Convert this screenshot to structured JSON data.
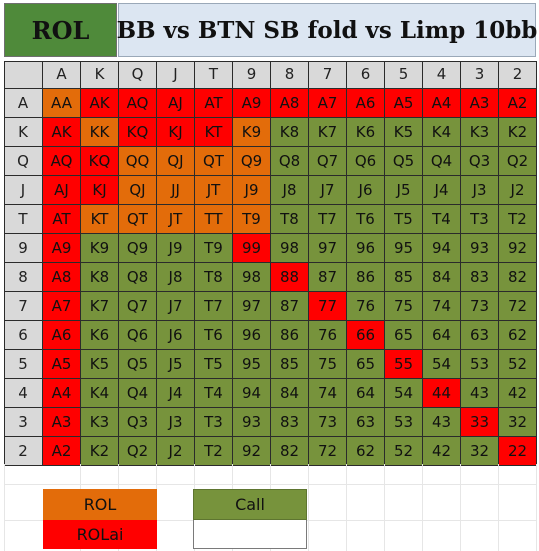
{
  "header": {
    "tag": "ROL",
    "title": "BB vs BTN SB fold vs Limp 10bb"
  },
  "colors": {
    "ROL": "#e36c0a",
    "ROLai": "#ff0000",
    "Call": "#77933c",
    "header_tag": "#4f8a3a",
    "title_bg": "#dce6f2",
    "axis_bg": "#d9d9d9"
  },
  "grid": {
    "ranks": [
      "A",
      "K",
      "Q",
      "J",
      "T",
      "9",
      "8",
      "7",
      "6",
      "5",
      "4",
      "3",
      "2"
    ],
    "rows": [
      {
        "label": "A",
        "cells": [
          [
            "AA",
            "ROL"
          ],
          [
            "AK",
            "ROLai"
          ],
          [
            "AQ",
            "ROLai"
          ],
          [
            "AJ",
            "ROLai"
          ],
          [
            "AT",
            "ROLai"
          ],
          [
            "A9",
            "ROLai"
          ],
          [
            "A8",
            "ROLai"
          ],
          [
            "A7",
            "ROLai"
          ],
          [
            "A6",
            "ROLai"
          ],
          [
            "A5",
            "ROLai"
          ],
          [
            "A4",
            "ROLai"
          ],
          [
            "A3",
            "ROLai"
          ],
          [
            "A2",
            "ROLai"
          ]
        ]
      },
      {
        "label": "K",
        "cells": [
          [
            "AK",
            "ROLai"
          ],
          [
            "KK",
            "ROL"
          ],
          [
            "KQ",
            "ROLai"
          ],
          [
            "KJ",
            "ROLai"
          ],
          [
            "KT",
            "ROLai"
          ],
          [
            "K9",
            "ROL"
          ],
          [
            "K8",
            "Call"
          ],
          [
            "K7",
            "Call"
          ],
          [
            "K6",
            "Call"
          ],
          [
            "K5",
            "Call"
          ],
          [
            "K4",
            "Call"
          ],
          [
            "K3",
            "Call"
          ],
          [
            "K2",
            "Call"
          ]
        ]
      },
      {
        "label": "Q",
        "cells": [
          [
            "AQ",
            "ROLai"
          ],
          [
            "KQ",
            "ROLai"
          ],
          [
            "QQ",
            "ROL"
          ],
          [
            "QJ",
            "ROL"
          ],
          [
            "QT",
            "ROL"
          ],
          [
            "Q9",
            "ROL"
          ],
          [
            "Q8",
            "Call"
          ],
          [
            "Q7",
            "Call"
          ],
          [
            "Q6",
            "Call"
          ],
          [
            "Q5",
            "Call"
          ],
          [
            "Q4",
            "Call"
          ],
          [
            "Q3",
            "Call"
          ],
          [
            "Q2",
            "Call"
          ]
        ]
      },
      {
        "label": "J",
        "cells": [
          [
            "AJ",
            "ROLai"
          ],
          [
            "KJ",
            "ROLai"
          ],
          [
            "QJ",
            "ROL"
          ],
          [
            "JJ",
            "ROL"
          ],
          [
            "JT",
            "ROL"
          ],
          [
            "J9",
            "ROL"
          ],
          [
            "J8",
            "Call"
          ],
          [
            "J7",
            "Call"
          ],
          [
            "J6",
            "Call"
          ],
          [
            "J5",
            "Call"
          ],
          [
            "J4",
            "Call"
          ],
          [
            "J3",
            "Call"
          ],
          [
            "J2",
            "Call"
          ]
        ]
      },
      {
        "label": "T",
        "cells": [
          [
            "AT",
            "ROLai"
          ],
          [
            "KT",
            "ROL"
          ],
          [
            "QT",
            "ROL"
          ],
          [
            "JT",
            "ROL"
          ],
          [
            "TT",
            "ROL"
          ],
          [
            "T9",
            "ROL"
          ],
          [
            "T8",
            "Call"
          ],
          [
            "T7",
            "Call"
          ],
          [
            "T6",
            "Call"
          ],
          [
            "T5",
            "Call"
          ],
          [
            "T4",
            "Call"
          ],
          [
            "T3",
            "Call"
          ],
          [
            "T2",
            "Call"
          ]
        ]
      },
      {
        "label": "9",
        "cells": [
          [
            "A9",
            "ROLai"
          ],
          [
            "K9",
            "Call"
          ],
          [
            "Q9",
            "Call"
          ],
          [
            "J9",
            "Call"
          ],
          [
            "T9",
            "Call"
          ],
          [
            "99",
            "ROLai"
          ],
          [
            "98",
            "Call"
          ],
          [
            "97",
            "Call"
          ],
          [
            "96",
            "Call"
          ],
          [
            "95",
            "Call"
          ],
          [
            "94",
            "Call"
          ],
          [
            "93",
            "Call"
          ],
          [
            "92",
            "Call"
          ]
        ]
      },
      {
        "label": "8",
        "cells": [
          [
            "A8",
            "ROLai"
          ],
          [
            "K8",
            "Call"
          ],
          [
            "Q8",
            "Call"
          ],
          [
            "J8",
            "Call"
          ],
          [
            "T8",
            "Call"
          ],
          [
            "98",
            "Call"
          ],
          [
            "88",
            "ROLai"
          ],
          [
            "87",
            "Call"
          ],
          [
            "86",
            "Call"
          ],
          [
            "85",
            "Call"
          ],
          [
            "84",
            "Call"
          ],
          [
            "83",
            "Call"
          ],
          [
            "82",
            "Call"
          ]
        ]
      },
      {
        "label": "7",
        "cells": [
          [
            "A7",
            "ROLai"
          ],
          [
            "K7",
            "Call"
          ],
          [
            "Q7",
            "Call"
          ],
          [
            "J7",
            "Call"
          ],
          [
            "T7",
            "Call"
          ],
          [
            "97",
            "Call"
          ],
          [
            "87",
            "Call"
          ],
          [
            "77",
            "ROLai"
          ],
          [
            "76",
            "Call"
          ],
          [
            "75",
            "Call"
          ],
          [
            "74",
            "Call"
          ],
          [
            "73",
            "Call"
          ],
          [
            "72",
            "Call"
          ]
        ]
      },
      {
        "label": "6",
        "cells": [
          [
            "A6",
            "ROLai"
          ],
          [
            "K6",
            "Call"
          ],
          [
            "Q6",
            "Call"
          ],
          [
            "J6",
            "Call"
          ],
          [
            "T6",
            "Call"
          ],
          [
            "96",
            "Call"
          ],
          [
            "86",
            "Call"
          ],
          [
            "76",
            "Call"
          ],
          [
            "66",
            "ROLai"
          ],
          [
            "65",
            "Call"
          ],
          [
            "64",
            "Call"
          ],
          [
            "63",
            "Call"
          ],
          [
            "62",
            "Call"
          ]
        ]
      },
      {
        "label": "5",
        "cells": [
          [
            "A5",
            "ROLai"
          ],
          [
            "K5",
            "Call"
          ],
          [
            "Q5",
            "Call"
          ],
          [
            "J5",
            "Call"
          ],
          [
            "T5",
            "Call"
          ],
          [
            "95",
            "Call"
          ],
          [
            "85",
            "Call"
          ],
          [
            "75",
            "Call"
          ],
          [
            "65",
            "Call"
          ],
          [
            "55",
            "ROLai"
          ],
          [
            "54",
            "Call"
          ],
          [
            "53",
            "Call"
          ],
          [
            "52",
            "Call"
          ]
        ]
      },
      {
        "label": "4",
        "cells": [
          [
            "A4",
            "ROLai"
          ],
          [
            "K4",
            "Call"
          ],
          [
            "Q4",
            "Call"
          ],
          [
            "J4",
            "Call"
          ],
          [
            "T4",
            "Call"
          ],
          [
            "94",
            "Call"
          ],
          [
            "84",
            "Call"
          ],
          [
            "74",
            "Call"
          ],
          [
            "64",
            "Call"
          ],
          [
            "54",
            "Call"
          ],
          [
            "44",
            "ROLai"
          ],
          [
            "43",
            "Call"
          ],
          [
            "42",
            "Call"
          ]
        ]
      },
      {
        "label": "3",
        "cells": [
          [
            "A3",
            "ROLai"
          ],
          [
            "K3",
            "Call"
          ],
          [
            "Q3",
            "Call"
          ],
          [
            "J3",
            "Call"
          ],
          [
            "T3",
            "Call"
          ],
          [
            "93",
            "Call"
          ],
          [
            "83",
            "Call"
          ],
          [
            "73",
            "Call"
          ],
          [
            "63",
            "Call"
          ],
          [
            "53",
            "Call"
          ],
          [
            "43",
            "Call"
          ],
          [
            "33",
            "ROLai"
          ],
          [
            "32",
            "Call"
          ]
        ]
      },
      {
        "label": "2",
        "cells": [
          [
            "A2",
            "ROLai"
          ],
          [
            "K2",
            "Call"
          ],
          [
            "Q2",
            "Call"
          ],
          [
            "J2",
            "Call"
          ],
          [
            "T2",
            "Call"
          ],
          [
            "92",
            "Call"
          ],
          [
            "82",
            "Call"
          ],
          [
            "72",
            "Call"
          ],
          [
            "62",
            "Call"
          ],
          [
            "52",
            "Call"
          ],
          [
            "42",
            "Call"
          ],
          [
            "32",
            "Call"
          ],
          [
            "22",
            "ROLai"
          ]
        ]
      }
    ]
  },
  "legend": {
    "rol": "ROL",
    "rolai": "ROLai",
    "call": "Call"
  }
}
